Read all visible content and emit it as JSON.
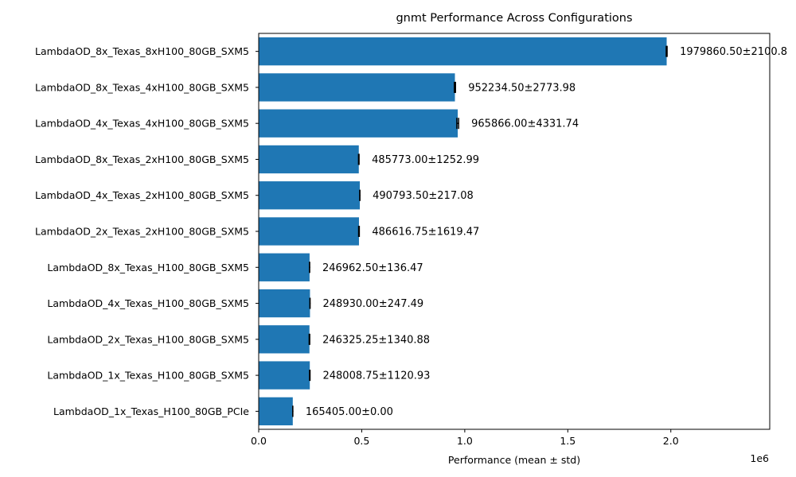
{
  "chart_data": {
    "type": "bar",
    "orientation": "horizontal",
    "title": "gnmt Performance Across Configurations",
    "xlabel": "Performance (mean ± std)",
    "ylabel": "",
    "x_offset_text": "1e6",
    "xlim": [
      0,
      2.48
    ],
    "xticks": [
      0.0,
      0.5,
      1.0,
      1.5,
      2.0
    ],
    "xtick_labels": [
      "0.0",
      "0.5",
      "1.0",
      "1.5",
      "2.0"
    ],
    "scale": 1000000,
    "grid": false,
    "bar_color": "#1f77b4",
    "categories": [
      "LambdaOD_8x_Texas_8xH100_80GB_SXM5",
      "LambdaOD_8x_Texas_4xH100_80GB_SXM5",
      "LambdaOD_4x_Texas_4xH100_80GB_SXM5",
      "LambdaOD_8x_Texas_2xH100_80GB_SXM5",
      "LambdaOD_4x_Texas_2xH100_80GB_SXM5",
      "LambdaOD_2x_Texas_2xH100_80GB_SXM5",
      "LambdaOD_8x_Texas_H100_80GB_SXM5",
      "LambdaOD_4x_Texas_H100_80GB_SXM5",
      "LambdaOD_2x_Texas_H100_80GB_SXM5",
      "LambdaOD_1x_Texas_H100_80GB_SXM5",
      "LambdaOD_1x_Texas_H100_80GB_PCIe"
    ],
    "values": [
      1979860.5,
      952234.5,
      965866.0,
      485773.0,
      490793.5,
      486616.75,
      246962.5,
      248930.0,
      246325.25,
      248008.75,
      165405.0
    ],
    "errors": [
      2100.8,
      2773.98,
      4331.74,
      1252.99,
      217.08,
      1619.47,
      136.47,
      247.49,
      1340.88,
      1120.93,
      0.0
    ],
    "data_labels": [
      "1979860.50±2100.8",
      "952234.50±2773.98",
      "965866.00±4331.74",
      "485773.00±1252.99",
      "490793.50±217.08",
      "486616.75±1619.47",
      "246962.50±136.47",
      "248930.00±247.49",
      "246325.25±1340.88",
      "248008.75±1120.93",
      "165405.00±0.00"
    ]
  }
}
